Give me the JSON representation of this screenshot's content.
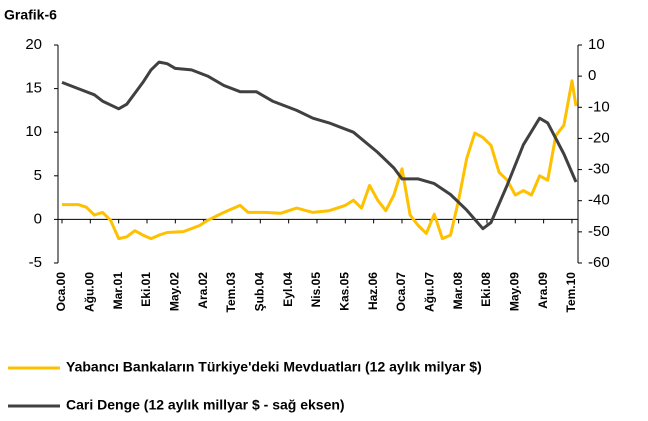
{
  "chart_data": {
    "type": "line",
    "title": "Grafik-6",
    "xlim": [
      "2000-01",
      "2010-08"
    ],
    "xticks": [
      {
        "value": "2000-01",
        "label": "Oca.00"
      },
      {
        "value": "2000-08",
        "label": "Ağu.00"
      },
      {
        "value": "2001-03",
        "label": "Mar.01"
      },
      {
        "value": "2001-10",
        "label": "Eki.01"
      },
      {
        "value": "2002-05",
        "label": "May.02"
      },
      {
        "value": "2002-12",
        "label": "Ara.02"
      },
      {
        "value": "2003-07",
        "label": "Tem.03"
      },
      {
        "value": "2004-02",
        "label": "Şub.04"
      },
      {
        "value": "2004-09",
        "label": "Eyl.04"
      },
      {
        "value": "2005-04",
        "label": "Nis.05"
      },
      {
        "value": "2005-11",
        "label": "Kas.05"
      },
      {
        "value": "2006-06",
        "label": "Haz.06"
      },
      {
        "value": "2007-01",
        "label": "Oca.07"
      },
      {
        "value": "2007-08",
        "label": "Ağu.07"
      },
      {
        "value": "2008-03",
        "label": "Mar.08"
      },
      {
        "value": "2008-10",
        "label": "Eki.08"
      },
      {
        "value": "2009-05",
        "label": "May.09"
      },
      {
        "value": "2009-12",
        "label": "Ara.09"
      },
      {
        "value": "2010-07",
        "label": "Tem.10"
      }
    ],
    "ylim": [
      -5,
      20
    ],
    "yticks": [
      -5,
      0,
      5,
      10,
      15,
      20
    ],
    "y2lim": [
      -60,
      10
    ],
    "y2ticks": [
      -60,
      -50,
      -40,
      -30,
      -20,
      -10,
      0,
      10
    ],
    "legend": "bottom",
    "series": [
      {
        "name": "Yabancı Bankaların Türkiye'deki Mevduatları (12 aylık milyar $)",
        "color": "#ffc000",
        "x": [
          "2000-01",
          "2000-05",
          "2000-07",
          "2000-09",
          "2000-11",
          "2001-01",
          "2001-03",
          "2001-05",
          "2001-07",
          "2001-09",
          "2001-11",
          "2002-01",
          "2002-03",
          "2002-07",
          "2002-11",
          "2003-01",
          "2003-05",
          "2003-09",
          "2003-11",
          "2004-03",
          "2004-07",
          "2004-11",
          "2005-03",
          "2005-07",
          "2005-11",
          "2006-01",
          "2006-03",
          "2006-05",
          "2006-07",
          "2006-09",
          "2006-11",
          "2007-01",
          "2007-03",
          "2007-05",
          "2007-07",
          "2007-09",
          "2007-11",
          "2008-01",
          "2008-03",
          "2008-05",
          "2008-07",
          "2008-09",
          "2008-11",
          "2009-01",
          "2009-03",
          "2009-05",
          "2009-07",
          "2009-09",
          "2009-11",
          "2010-01",
          "2010-03",
          "2010-05",
          "2010-07",
          "2010-08"
        ],
        "values": [
          1.7,
          1.7,
          1.4,
          0.5,
          0.8,
          -0.1,
          -2.2,
          -2,
          -1.3,
          -1.8,
          -2.2,
          -1.8,
          -1.5,
          -1.4,
          -0.7,
          -0.1,
          0.8,
          1.6,
          0.8,
          0.8,
          0.7,
          1.3,
          0.8,
          1,
          1.6,
          2.2,
          1.3,
          3.9,
          2.2,
          1,
          2.8,
          5.8,
          0.5,
          -0.7,
          -1.6,
          0.6,
          -2.2,
          -1.8,
          2.2,
          7,
          9.9,
          9.4,
          8.5,
          5.4,
          4.5,
          2.8,
          3.3,
          2.8,
          5,
          4.5,
          9.6,
          10.8,
          15.9,
          13
        ]
      },
      {
        "name": "Cari Denge (12 aylık millyar $ - sağ eksen)",
        "color": "#404040",
        "axis": "y2",
        "x": [
          "2000-01",
          "2000-05",
          "2000-09",
          "2000-11",
          "2001-03",
          "2001-05",
          "2001-09",
          "2001-11",
          "2002-01",
          "2002-03",
          "2002-05",
          "2002-09",
          "2003-01",
          "2003-05",
          "2003-09",
          "2004-01",
          "2004-05",
          "2004-11",
          "2005-03",
          "2005-07",
          "2006-01",
          "2006-07",
          "2006-11",
          "2007-01",
          "2007-05",
          "2007-09",
          "2008-01",
          "2008-05",
          "2008-09",
          "2008-11",
          "2009-03",
          "2009-07",
          "2009-11",
          "2010-01",
          "2010-05",
          "2010-08"
        ],
        "values": [
          -2,
          -4,
          -6,
          -8,
          -10.5,
          -9,
          -2,
          2,
          4.5,
          4,
          2.5,
          2,
          0,
          -3,
          -5,
          -5,
          -8,
          -11,
          -13.5,
          -15,
          -18,
          -24.5,
          -29.5,
          -33,
          -33,
          -34.5,
          -38,
          -43,
          -49,
          -47,
          -35,
          -22,
          -13.5,
          -15,
          -25,
          -34
        ]
      }
    ]
  }
}
